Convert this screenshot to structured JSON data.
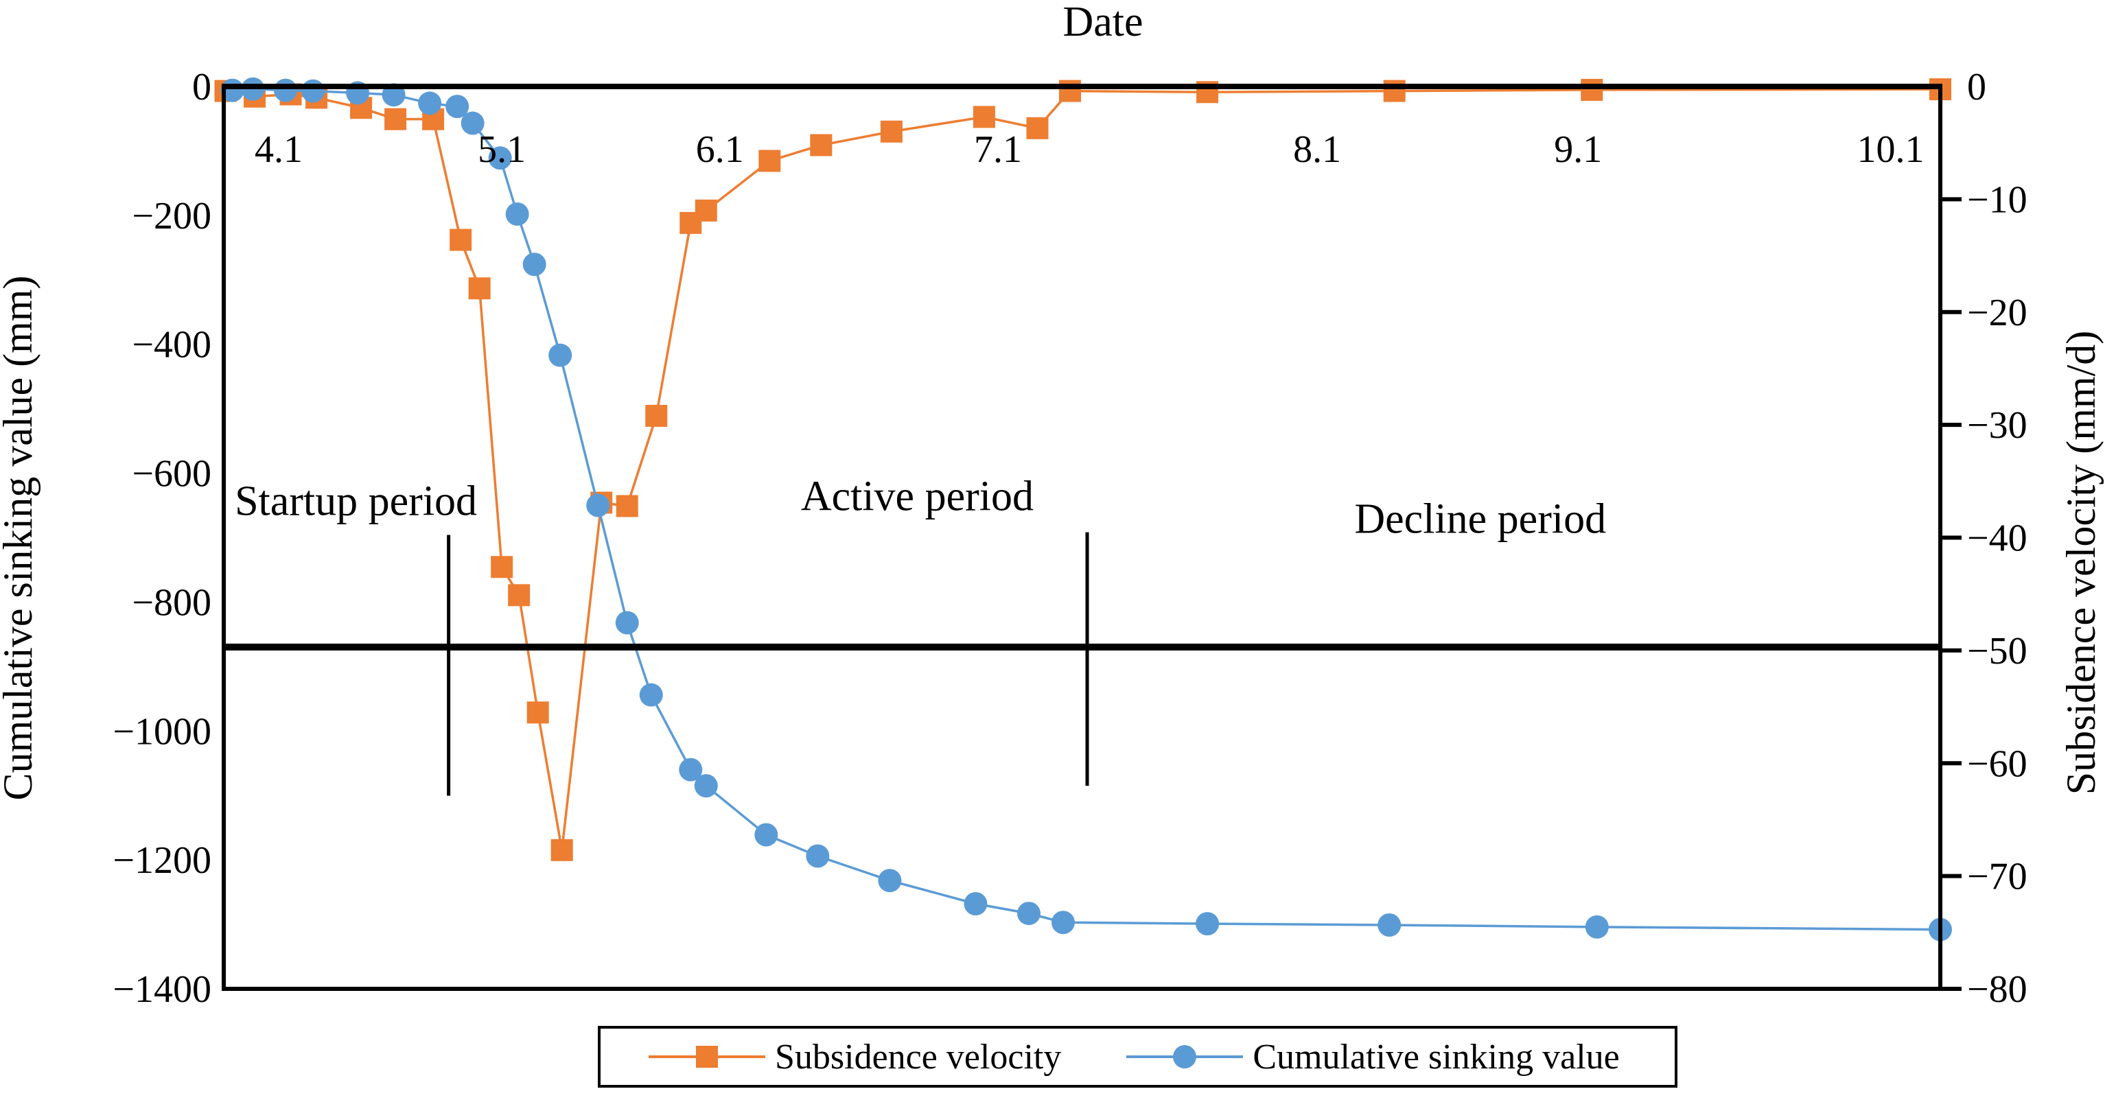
{
  "page": {
    "background": "#ffffff"
  },
  "legend": {
    "items": [
      {
        "label": "Subsidence velocity"
      },
      {
        "label": "Cumulative sinking value"
      }
    ]
  },
  "chart_data": {
    "type": "line",
    "title": "Date",
    "grid": "off",
    "legend_position": "bottom",
    "x_axis": {
      "label": "Date",
      "axis_position": "top",
      "ticks": [
        {
          "label": "4.1",
          "x": 0.032
        },
        {
          "label": "5.1",
          "x": 0.162
        },
        {
          "label": "6.1",
          "x": 0.289
        },
        {
          "label": "7.1",
          "x": 0.451
        },
        {
          "label": "8.1",
          "x": 0.637
        },
        {
          "label": "9.1",
          "x": 0.789
        },
        {
          "label": "10.1",
          "x": 0.971
        }
      ]
    },
    "y_left": {
      "label": "Cumulative sinking value (mm)",
      "range": [
        0,
        -1400
      ],
      "ticks": [
        "0",
        "−200",
        "−400",
        "−600",
        "−800",
        "−1000",
        "−1200",
        "−1400"
      ]
    },
    "y_right": {
      "label": "Subsidence velocity (mm/d)",
      "range": [
        0,
        -80
      ],
      "ticks": [
        "0",
        "−10",
        "−20",
        "−30",
        "−40",
        "−50",
        "−60",
        "−70",
        "−80"
      ]
    },
    "threshold_line": {
      "axis": "right",
      "value": -49.7,
      "color": "#000000"
    },
    "phase_dividers": [
      {
        "x": 0.131,
        "y_top": 0.497,
        "y_bottom": 0.786
      },
      {
        "x": 0.503,
        "y_top": 0.494,
        "y_bottom": 0.775
      }
    ],
    "annotations": [
      {
        "label": "Startup period",
        "x": 0.077,
        "y": 0.458
      },
      {
        "label": "Active period",
        "x": 0.404,
        "y": 0.453
      },
      {
        "label": "Decline period",
        "x": 0.732,
        "y": 0.478
      }
    ],
    "series": [
      {
        "name": "Subsidence velocity",
        "axis": "right",
        "units": "mm/d",
        "marker": "square",
        "color": "#ED7D31",
        "points": [
          [
            0.001,
            -0.4
          ],
          [
            0.018,
            -0.9
          ],
          [
            0.039,
            -0.7
          ],
          [
            0.054,
            -1.0
          ],
          [
            0.08,
            -1.9
          ],
          [
            0.1,
            -2.9
          ],
          [
            0.122,
            -2.9
          ],
          [
            0.138,
            -13.6
          ],
          [
            0.149,
            -17.9
          ],
          [
            0.162,
            -42.6
          ],
          [
            0.172,
            -45.1
          ],
          [
            0.183,
            -55.5
          ],
          [
            0.197,
            -67.7
          ],
          [
            0.22,
            -36.9
          ],
          [
            0.235,
            -37.2
          ],
          [
            0.252,
            -29.2
          ],
          [
            0.272,
            -12.1
          ],
          [
            0.281,
            -11.0
          ],
          [
            0.318,
            -6.6
          ],
          [
            0.348,
            -5.2
          ],
          [
            0.389,
            -4.0
          ],
          [
            0.443,
            -2.7
          ],
          [
            0.474,
            -3.7
          ],
          [
            0.493,
            -0.4
          ],
          [
            0.573,
            -0.5
          ],
          [
            0.682,
            -0.4
          ],
          [
            0.797,
            -0.3
          ],
          [
            1.0,
            -0.25
          ]
        ]
      },
      {
        "name": "Cumulative sinking value",
        "axis": "left",
        "units": "mm",
        "marker": "circle",
        "color": "#5B9BD5",
        "points": [
          [
            0.005,
            -6
          ],
          [
            0.017,
            -4
          ],
          [
            0.036,
            -6
          ],
          [
            0.052,
            -7
          ],
          [
            0.078,
            -10
          ],
          [
            0.099,
            -13
          ],
          [
            0.12,
            -26
          ],
          [
            0.136,
            -31
          ],
          [
            0.145,
            -57
          ],
          [
            0.161,
            -111
          ],
          [
            0.171,
            -198
          ],
          [
            0.181,
            -276
          ],
          [
            0.196,
            -417
          ],
          [
            0.218,
            -650
          ],
          [
            0.235,
            -832
          ],
          [
            0.249,
            -944
          ],
          [
            0.272,
            -1060
          ],
          [
            0.281,
            -1085
          ],
          [
            0.316,
            -1161
          ],
          [
            0.346,
            -1194
          ],
          [
            0.388,
            -1232
          ],
          [
            0.438,
            -1268
          ],
          [
            0.469,
            -1283
          ],
          [
            0.489,
            -1297
          ],
          [
            0.573,
            -1299
          ],
          [
            0.679,
            -1301
          ],
          [
            0.8,
            -1304
          ],
          [
            1.0,
            -1308
          ]
        ]
      }
    ]
  }
}
